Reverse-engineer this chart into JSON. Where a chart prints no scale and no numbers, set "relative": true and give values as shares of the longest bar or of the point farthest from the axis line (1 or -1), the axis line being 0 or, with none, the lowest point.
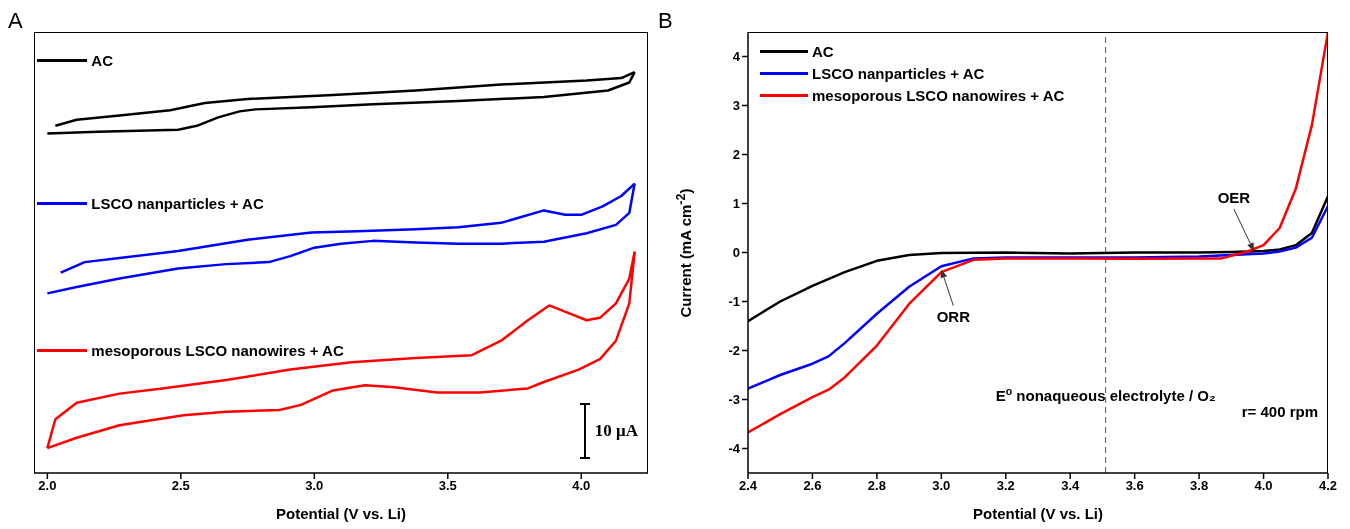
{
  "chart_data": [
    {
      "type": "line",
      "relative": true,
      "xlabel": "Potential (V vs. Li)",
      "xlim": [
        1.95,
        4.25
      ],
      "xticks": [
        {
          "value": 2,
          "label": "2.0"
        },
        {
          "value": 2.5,
          "label": "2.5"
        },
        {
          "value": 3,
          "label": "3.0"
        },
        {
          "value": 3.5,
          "label": "3.5"
        },
        {
          "value": 4,
          "label": "4.0"
        }
      ],
      "legend": "left",
      "marker": "none",
      "line_style": "solid",
      "annotations": [
        "A",
        "10 μA"
      ],
      "series": [
        {
          "name": "AC",
          "color": "#000000",
          "x": [
            2.0,
            2.19,
            2.49,
            2.56,
            2.64,
            2.72,
            2.78,
            2.99,
            3.22,
            3.54,
            3.86,
            4.1,
            4.18,
            4.2
          ],
          "values": [
            0.847,
            0.851,
            0.856,
            0.866,
            0.887,
            0.902,
            0.907,
            0.912,
            0.92,
            0.928,
            0.938,
            0.954,
            0.974,
            1.0
          ]
        },
        {
          "color": "#000000",
          "x": [
            4.2,
            4.15,
            4.02,
            3.7,
            3.38,
            3.07,
            2.75,
            2.59,
            2.46,
            2.27,
            2.11,
            2.03
          ],
          "values": [
            1.0,
            0.985,
            0.979,
            0.969,
            0.954,
            0.943,
            0.933,
            0.923,
            0.905,
            0.892,
            0.881,
            0.866
          ]
        },
        {
          "name": "LSCO nanparticles + AC",
          "color": "#0000ff",
          "x": [
            2.0,
            2.11,
            2.27,
            2.49,
            2.67,
            2.83,
            2.91,
            3.0,
            3.1,
            3.22,
            3.38,
            3.54,
            3.7,
            3.86,
            4.02,
            4.13,
            4.18,
            4.2
          ],
          "values": [
            0.448,
            0.464,
            0.485,
            0.51,
            0.521,
            0.526,
            0.541,
            0.562,
            0.572,
            0.579,
            0.575,
            0.572,
            0.572,
            0.577,
            0.598,
            0.619,
            0.649,
            0.722
          ]
        },
        {
          "color": "#0000ff",
          "x": [
            4.2,
            4.15,
            4.08,
            4.0,
            3.94,
            3.86,
            3.7,
            3.54,
            3.38,
            3.16,
            2.99,
            2.75,
            2.49,
            2.27,
            2.14,
            2.05
          ],
          "values": [
            0.722,
            0.691,
            0.665,
            0.644,
            0.644,
            0.655,
            0.624,
            0.613,
            0.608,
            0.603,
            0.6,
            0.582,
            0.554,
            0.536,
            0.526,
            0.5
          ]
        },
        {
          "name": "mesoporous LSCO nanowires + AC",
          "color": "#ff0000",
          "x": [
            2.0,
            2.11,
            2.27,
            2.51,
            2.67,
            2.87,
            2.95,
            3.07,
            3.19,
            3.3,
            3.46,
            3.62,
            3.8,
            3.86,
            3.99,
            4.07,
            4.13,
            4.18,
            4.2
          ],
          "values": [
            0.062,
            0.088,
            0.119,
            0.144,
            0.153,
            0.157,
            0.17,
            0.206,
            0.219,
            0.214,
            0.201,
            0.201,
            0.211,
            0.227,
            0.258,
            0.284,
            0.33,
            0.423,
            0.552
          ]
        },
        {
          "color": "#ff0000",
          "x": [
            4.2,
            4.18,
            4.13,
            4.07,
            4.02,
            3.96,
            3.88,
            3.8,
            3.7,
            3.59,
            3.38,
            3.14,
            2.91,
            2.67,
            2.43,
            2.27,
            2.11,
            2.03,
            2.0
          ],
          "values": [
            0.552,
            0.485,
            0.423,
            0.387,
            0.381,
            0.397,
            0.418,
            0.381,
            0.33,
            0.294,
            0.287,
            0.276,
            0.258,
            0.232,
            0.211,
            0.198,
            0.175,
            0.134,
            0.062
          ]
        }
      ]
    },
    {
      "type": "line",
      "xlabel": "Potential (V vs. Li)",
      "ylabel": "Current (mA cm$^{-2}$)",
      "xlim": [
        2.4,
        4.2
      ],
      "xticks": [
        {
          "value": 2.4,
          "label": "2.4"
        },
        {
          "value": 2.6,
          "label": "2.6"
        },
        {
          "value": 2.8,
          "label": "2.8"
        },
        {
          "value": 3,
          "label": "3.0"
        },
        {
          "value": 3.2,
          "label": "3.2"
        },
        {
          "value": 3.4,
          "label": "3.4"
        },
        {
          "value": 3.6,
          "label": "3.6"
        },
        {
          "value": 3.8,
          "label": "3.8"
        },
        {
          "value": 4,
          "label": "4.0"
        },
        {
          "value": 4.2,
          "label": "4.2"
        }
      ],
      "ylim": [
        -4.5,
        4.5
      ],
      "yticks": [
        -4,
        -3,
        -2,
        -1,
        0,
        1,
        2,
        3,
        4
      ],
      "legend": "top left",
      "marker": "none",
      "line_style": "solid",
      "ref_lines": [
        {
          "axis": "x",
          "value": 3.51,
          "label": "E$^{o}$ nonaqueous electrolyte / O₂",
          "color": "#555555",
          "line_style": "dashed"
        }
      ],
      "annotations": [
        "B",
        {
          "text": "ORR",
          "x": 3.0,
          "y": -0.35
        },
        {
          "text": "OER",
          "x": 3.97,
          "y": 0.03
        },
        "r= 400 rpm"
      ],
      "series": [
        {
          "name": "AC",
          "color": "#000000",
          "x": [
            2.4,
            2.5,
            2.6,
            2.7,
            2.8,
            2.9,
            3.0,
            3.2,
            3.4,
            3.6,
            3.8,
            3.9,
            4.0,
            4.05,
            4.1,
            4.15,
            4.2
          ],
          "values": [
            -1.4,
            -1.0,
            -0.68,
            -0.4,
            -0.17,
            -0.05,
            -0.01,
            0,
            -0.02,
            0,
            0,
            0.01,
            0.03,
            0.06,
            0.15,
            0.4,
            1.15
          ]
        },
        {
          "name": "LSCO nanparticles + AC",
          "color": "#0000ff",
          "x": [
            2.4,
            2.5,
            2.6,
            2.65,
            2.7,
            2.8,
            2.9,
            3.0,
            3.1,
            3.2,
            3.4,
            3.6,
            3.8,
            3.9,
            4.0,
            4.05,
            4.1,
            4.15,
            4.2
          ],
          "values": [
            -2.78,
            -2.5,
            -2.27,
            -2.12,
            -1.85,
            -1.25,
            -0.7,
            -0.28,
            -0.12,
            -0.1,
            -0.1,
            -0.1,
            -0.08,
            -0.05,
            -0.02,
            0.02,
            0.1,
            0.3,
            0.95
          ]
        },
        {
          "name": "mesoporous LSCO nanowires + AC",
          "color": "#ff0000",
          "x": [
            2.4,
            2.5,
            2.6,
            2.65,
            2.7,
            2.8,
            2.9,
            3.0,
            3.1,
            3.2,
            3.4,
            3.6,
            3.8,
            3.87,
            3.95,
            4.0,
            4.05,
            4.1,
            4.15,
            4.2
          ],
          "values": [
            -3.67,
            -3.3,
            -2.95,
            -2.8,
            -2.55,
            -1.9,
            -1.05,
            -0.4,
            -0.15,
            -0.12,
            -0.12,
            -0.13,
            -0.12,
            -0.12,
            0.02,
            0.15,
            0.5,
            1.3,
            2.6,
            4.5
          ]
        }
      ]
    }
  ]
}
